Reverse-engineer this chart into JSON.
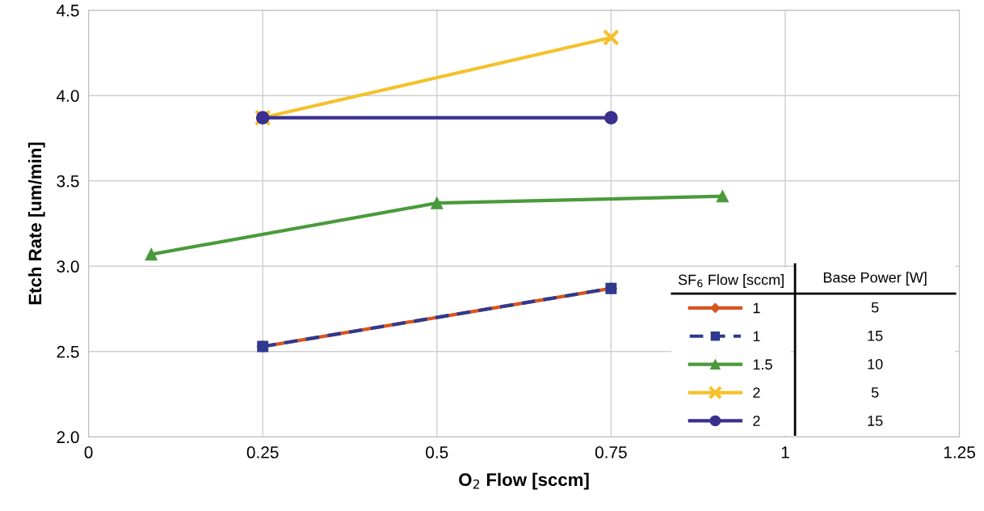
{
  "chart_data": {
    "type": "line",
    "xlabel": "O$_{2}$ Flow [sccm]",
    "ylabel": "Etch Rate [um/min]",
    "xlim": [
      0,
      1.25
    ],
    "xticks": [
      0,
      {
        "value": 0.25,
        "label": "0.25"
      },
      {
        "value": 0.5,
        "label": "0.5"
      },
      {
        "value": 0.75,
        "label": "0.75"
      },
      1,
      {
        "value": 1.25,
        "label": "1.25"
      }
    ],
    "ylim": [
      2.0,
      4.5
    ],
    "yticks": [
      {
        "value": 2.0,
        "label": "2.0"
      },
      {
        "value": 2.5,
        "label": "2.5"
      },
      {
        "value": 3.0,
        "label": "3.0"
      },
      {
        "value": 3.5,
        "label": "3.5"
      },
      {
        "value": 4.0,
        "label": "4.0"
      },
      {
        "value": 4.5,
        "label": "4.5"
      }
    ],
    "grid": true,
    "legend": "bottom right",
    "legend_title": "SF$_{6}$ Flow [sccm]",
    "annotations": [
      "Base Power [W]",
      "5",
      "15",
      "10",
      "5",
      "15"
    ],
    "series": [
      {
        "name": "1",
        "color": "#d9541e",
        "marker": "diamond",
        "line_style": "solid",
        "x": [
          0.25,
          0.75
        ],
        "values": [
          2.53,
          2.87
        ]
      },
      {
        "name": "1",
        "color": "#2e3a8f",
        "marker": "square",
        "line_style": "dashed",
        "x": [
          0.25,
          0.75
        ],
        "values": [
          2.53,
          2.87
        ]
      },
      {
        "name": "1.5",
        "color": "#4a9a3c",
        "marker": "triangle",
        "line_style": "solid",
        "x": [
          0.09,
          0.5,
          0.91
        ],
        "values": [
          3.07,
          3.37,
          3.41
        ]
      },
      {
        "name": "2",
        "color": "#f5c12a",
        "marker": "cross",
        "line_style": "solid",
        "x": [
          0.25,
          0.75
        ],
        "values": [
          3.87,
          4.34
        ]
      },
      {
        "name": "2",
        "color": "#3b2f8f",
        "marker": "circle",
        "line_style": "solid",
        "x": [
          0.25,
          0.75
        ],
        "values": [
          3.87,
          3.87
        ]
      }
    ]
  }
}
